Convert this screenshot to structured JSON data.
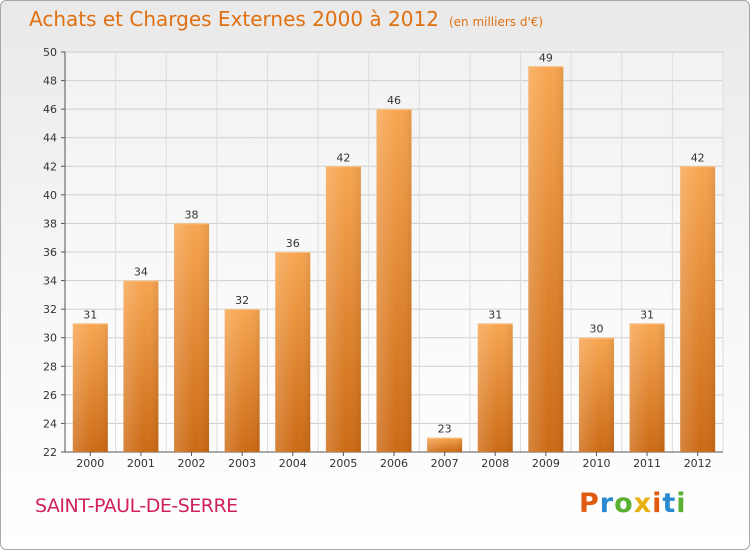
{
  "chart_data": {
    "type": "bar",
    "title": "Achats et Charges Externes 2000 à 2012",
    "subtitle": "(en milliers d'€)",
    "categories": [
      "2000",
      "2001",
      "2002",
      "2003",
      "2004",
      "2005",
      "2006",
      "2007",
      "2008",
      "2009",
      "2010",
      "2011",
      "2012"
    ],
    "values": [
      31,
      34,
      38,
      32,
      36,
      42,
      46,
      23,
      31,
      49,
      30,
      31,
      42
    ],
    "ylim": [
      22,
      50
    ],
    "yticks": [
      22,
      24,
      26,
      28,
      30,
      32,
      34,
      36,
      38,
      40,
      42,
      44,
      46,
      48,
      50
    ],
    "grid": true,
    "bar_color": "#f0882a"
  },
  "footer": {
    "location": "SAINT-PAUL-DE-SERRE",
    "brand": "Proxiti",
    "brand_colors": [
      "#e05a10",
      "#2a8ad0",
      "#5ab030",
      "#e8b010",
      "#e05a10",
      "#2a8ad0",
      "#5ab030"
    ]
  }
}
